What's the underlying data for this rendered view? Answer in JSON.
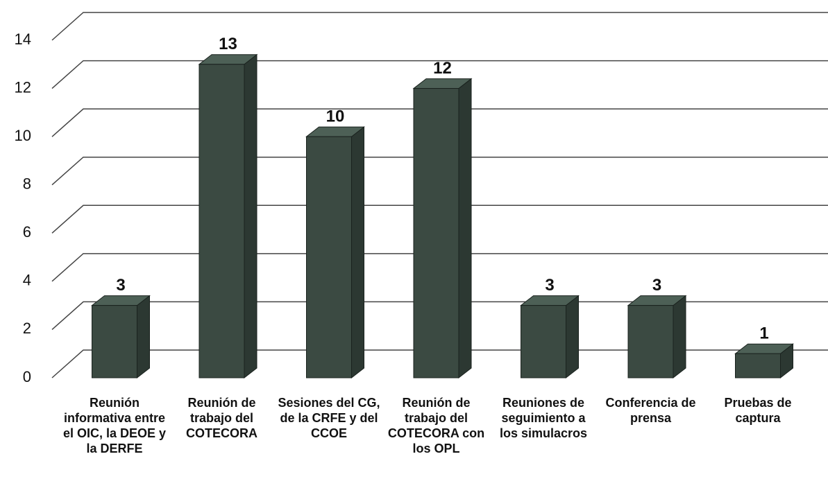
{
  "chart_data": {
    "type": "bar",
    "categories": [
      "Reunión informativa entre el OIC, la DEOE y la DERFE",
      "Reunión de trabajo del COTECORA",
      "Sesiones del CG, de la CRFE y del CCOE",
      "Reunión de trabajo del COTECORA con los OPL",
      "Reuniones de seguimiento a los simulacros",
      "Conferencia de prensa",
      "Pruebas de captura"
    ],
    "values": [
      3,
      13,
      10,
      12,
      3,
      3,
      1
    ],
    "color": "#3b4a42",
    "ylim": [
      0,
      14
    ],
    "yticks": [
      0,
      2,
      4,
      6,
      8,
      10,
      12,
      14
    ],
    "grid": true
  }
}
